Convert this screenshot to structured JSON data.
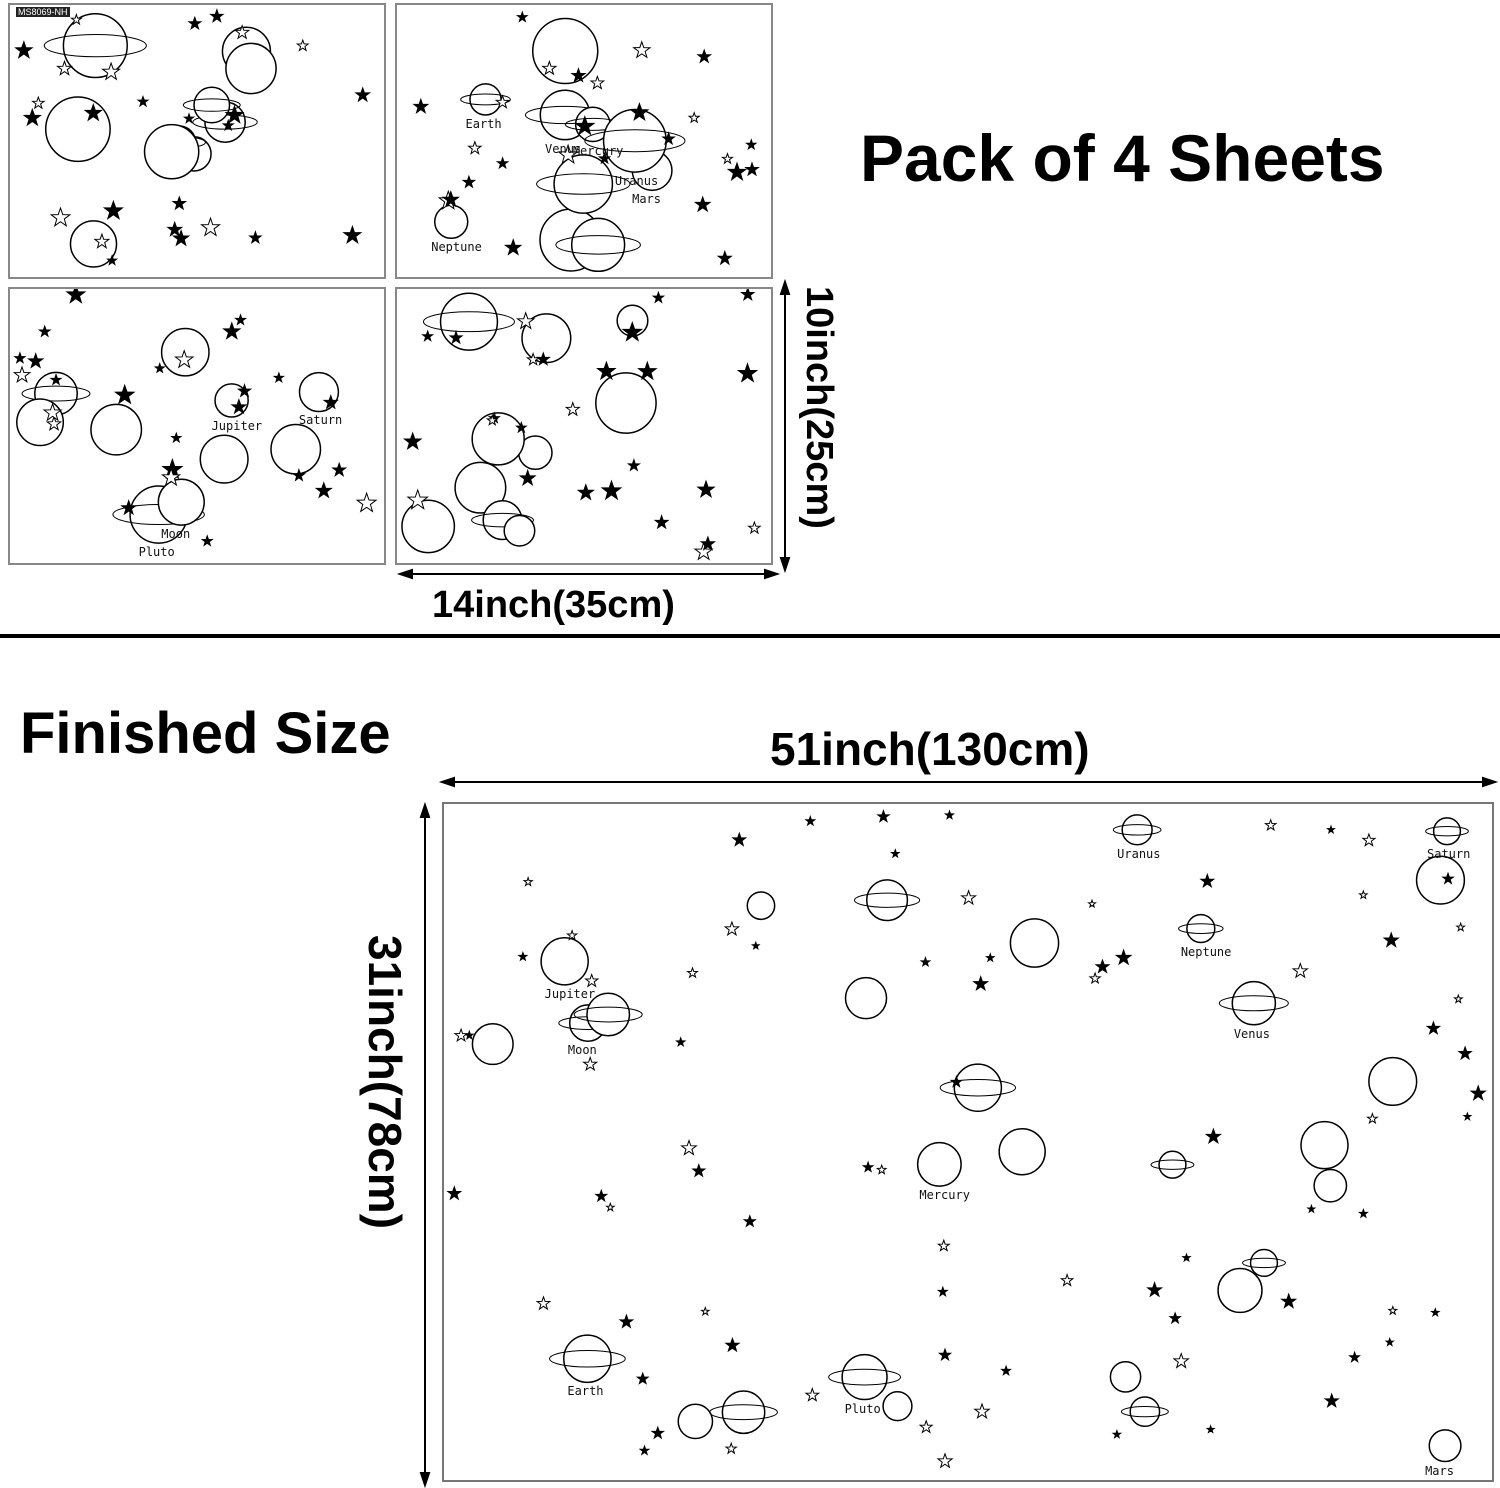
{
  "headline": "Pack of 4 Sheets",
  "sheet_code": "MS8069-NH",
  "sheet_width_label": "14inch(35cm)",
  "sheet_height_label": "10inch(25cm)",
  "finished_title": "Finished Size",
  "finished_width_label": "51inch(130cm)",
  "finished_height_label": "31inch(78cm)",
  "sheets": [
    {
      "labels": []
    },
    {
      "labels": [
        "Mars",
        "Neptune",
        "Earth",
        "Venus",
        "Mercury",
        "Uranus"
      ]
    },
    {
      "labels": [
        "Jupiter",
        "Pluto",
        "Moon",
        "Saturn"
      ]
    },
    {
      "labels": []
    }
  ],
  "finished_labels": [
    "Pluto",
    "Saturn",
    "Mars",
    "Venus",
    "Jupiter",
    "Earth",
    "Mercury",
    "Neptune",
    "Uranus",
    "Moon"
  ],
  "colors": {
    "ink": "#000000",
    "border": "#888888"
  }
}
